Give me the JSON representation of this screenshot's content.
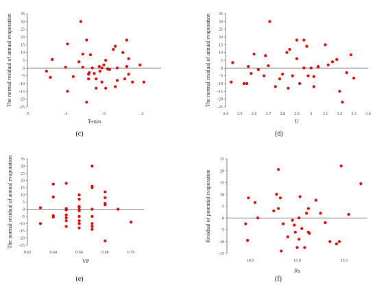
{
  "chart_data": [
    {
      "type": "scatter",
      "panel_label": "(c)",
      "xlabel": "T-min",
      "ylabel": "The normal residual of annual evaporation",
      "xlim": [
        -5,
        -1.5
      ],
      "ylim": [
        -25,
        35
      ],
      "xticks": [
        -5,
        -4,
        -3,
        -2
      ],
      "yticks": [
        -25,
        -20,
        -15,
        -10,
        -5,
        0,
        5,
        10,
        15,
        20,
        25,
        30,
        35
      ],
      "zero_line": true,
      "color": "#e00000",
      "points": [
        [
          -4.5,
          -2
        ],
        [
          -4.4,
          -6
        ],
        [
          -4.35,
          5.5
        ],
        [
          -4.0,
          0.5
        ],
        [
          -3.95,
          15.5
        ],
        [
          -3.95,
          -15
        ],
        [
          -3.8,
          -5.5
        ],
        [
          -3.65,
          4
        ],
        [
          -3.6,
          30
        ],
        [
          -3.55,
          9
        ],
        [
          -3.55,
          0.5
        ],
        [
          -3.45,
          18
        ],
        [
          -3.4,
          -4
        ],
        [
          -3.4,
          -7
        ],
        [
          -3.38,
          -3
        ],
        [
          -3.35,
          8.5
        ],
        [
          -3.3,
          0
        ],
        [
          -3.25,
          -3.5
        ],
        [
          -3.2,
          -7
        ],
        [
          -3.2,
          -13
        ],
        [
          -3.12,
          1
        ],
        [
          -3.1,
          -2
        ],
        [
          -3.05,
          -9
        ],
        [
          -3.05,
          0
        ],
        [
          -3.0,
          2
        ],
        [
          -2.95,
          5
        ],
        [
          -2.95,
          -13
        ],
        [
          -2.9,
          -0.5
        ],
        [
          -2.85,
          -1
        ],
        [
          -2.75,
          12
        ],
        [
          -2.7,
          14
        ],
        [
          -2.7,
          -12
        ],
        [
          -2.65,
          -8
        ],
        [
          -2.65,
          0
        ],
        [
          -2.5,
          10
        ],
        [
          -2.45,
          -7
        ],
        [
          -2.4,
          18
        ],
        [
          -2.4,
          1
        ],
        [
          -2.35,
          6
        ],
        [
          -2.35,
          -4
        ],
        [
          -2.25,
          -9
        ],
        [
          -2.05,
          2
        ],
        [
          -1.95,
          -9
        ],
        [
          -3.45,
          -22
        ]
      ]
    },
    {
      "type": "scatter",
      "panel_label": "(d)",
      "xlabel": "U",
      "ylabel": "The normal residual of annual evaporation",
      "xlim": [
        2.4,
        3.4
      ],
      "ylim": [
        -25,
        35
      ],
      "xticks": [
        2.4,
        2.5,
        2.6,
        2.7,
        2.8,
        2.9,
        3,
        3.1,
        3.2,
        3.3,
        3.4
      ],
      "yticks": [
        -25,
        -20,
        -15,
        -10,
        -5,
        0,
        5,
        10,
        15,
        20,
        25,
        30,
        35
      ],
      "zero_line": true,
      "color": "#e00000",
      "points": [
        [
          2.44,
          -9
        ],
        [
          2.45,
          3.5
        ],
        [
          2.53,
          -10
        ],
        [
          2.55,
          -10
        ],
        [
          2.56,
          1
        ],
        [
          2.58,
          -3.5
        ],
        [
          2.6,
          9
        ],
        [
          2.63,
          -1
        ],
        [
          2.67,
          -5
        ],
        [
          2.68,
          8
        ],
        [
          2.7,
          1.5
        ],
        [
          2.71,
          30
        ],
        [
          2.75,
          -12
        ],
        [
          2.78,
          -7
        ],
        [
          2.8,
          -4
        ],
        [
          2.83,
          10
        ],
        [
          2.84,
          -13
        ],
        [
          2.85,
          12
        ],
        [
          2.87,
          -5
        ],
        [
          2.9,
          18
        ],
        [
          2.9,
          6
        ],
        [
          2.92,
          -10
        ],
        [
          2.95,
          18
        ],
        [
          2.95,
          0
        ],
        [
          2.97,
          14
        ],
        [
          2.98,
          -5
        ],
        [
          3.0,
          0
        ],
        [
          3.02,
          -5.5
        ],
        [
          3.05,
          0.5
        ],
        [
          3.05,
          1
        ],
        [
          3.1,
          15
        ],
        [
          3.12,
          2
        ],
        [
          3.15,
          4
        ],
        [
          3.18,
          5.5
        ],
        [
          3.2,
          -15
        ],
        [
          3.22,
          -22
        ],
        [
          3.25,
          -3
        ],
        [
          3.28,
          8.5
        ],
        [
          3.3,
          -6.5
        ],
        [
          3.02,
          -12
        ]
      ]
    },
    {
      "type": "scatter",
      "panel_label": "(e)",
      "xlabel": "VP",
      "ylabel": "The normal residual of annual evaporation",
      "xlim": [
        0.62,
        0.71
      ],
      "ylim": [
        -25,
        35
      ],
      "xticks": [
        0.62,
        0.64,
        0.66,
        0.68,
        0.7
      ],
      "xtick_labels": [
        "0.62",
        "0.64",
        "0.66",
        "0.68",
        "0.70"
      ],
      "yticks": [
        -25,
        -20,
        -15,
        -10,
        -5,
        0,
        5,
        10,
        15,
        20,
        25,
        30,
        35
      ],
      "zero_line": true,
      "color": "#e00000",
      "points": [
        [
          0.63,
          1
        ],
        [
          0.63,
          -10
        ],
        [
          0.64,
          17.5
        ],
        [
          0.64,
          8.5
        ],
        [
          0.64,
          -5.5
        ],
        [
          0.64,
          -4.5
        ],
        [
          0.65,
          18
        ],
        [
          0.65,
          0.5
        ],
        [
          0.65,
          -0.5
        ],
        [
          0.65,
          -4
        ],
        [
          0.65,
          -6
        ],
        [
          0.65,
          -8
        ],
        [
          0.65,
          -12
        ],
        [
          0.66,
          10
        ],
        [
          0.66,
          7
        ],
        [
          0.66,
          2
        ],
        [
          0.66,
          1
        ],
        [
          0.66,
          -1
        ],
        [
          0.66,
          -5
        ],
        [
          0.66,
          -8
        ],
        [
          0.66,
          -10
        ],
        [
          0.66,
          -13
        ],
        [
          0.67,
          30
        ],
        [
          0.67,
          16
        ],
        [
          0.67,
          15
        ],
        [
          0.67,
          0
        ],
        [
          0.67,
          -5
        ],
        [
          0.67,
          -10
        ],
        [
          0.67,
          -12
        ],
        [
          0.67,
          -14
        ],
        [
          0.68,
          12
        ],
        [
          0.68,
          8
        ],
        [
          0.68,
          4
        ],
        [
          0.68,
          3
        ],
        [
          0.68,
          -22
        ],
        [
          0.69,
          0
        ],
        [
          0.7,
          -9
        ]
      ]
    },
    {
      "type": "scatter",
      "panel_label": "(f)",
      "xlabel": "Rs",
      "ylabel": "Residual of potential evaporation",
      "xlim": [
        14.25,
        15.75
      ],
      "ylim": [
        -15,
        25
      ],
      "xticks": [
        14.5,
        15.0,
        15.5
      ],
      "xtick_labels": [
        "14.5",
        "15.0",
        "15.5"
      ],
      "yticks": [
        -15,
        -10,
        -5,
        0,
        5,
        10,
        15,
        20,
        25
      ],
      "zero_line": true,
      "color": "#e00000",
      "points": [
        [
          14.45,
          -2.5
        ],
        [
          14.47,
          -9.5
        ],
        [
          14.48,
          8.5
        ],
        [
          14.55,
          6.5
        ],
        [
          14.58,
          0
        ],
        [
          14.75,
          3
        ],
        [
          14.78,
          10
        ],
        [
          14.8,
          20.5
        ],
        [
          14.8,
          4
        ],
        [
          14.82,
          8.5
        ],
        [
          14.83,
          -14
        ],
        [
          14.85,
          -2.5
        ],
        [
          14.95,
          -1
        ],
        [
          14.97,
          -3
        ],
        [
          14.98,
          -6
        ],
        [
          15.0,
          -12.5
        ],
        [
          15.02,
          -9
        ],
        [
          15.03,
          9
        ],
        [
          15.05,
          -4.5
        ],
        [
          15.08,
          -12.5
        ],
        [
          15.1,
          2
        ],
        [
          15.12,
          4
        ],
        [
          15.12,
          -6
        ],
        [
          15.13,
          -6.5
        ],
        [
          15.2,
          7.5
        ],
        [
          15.25,
          2
        ],
        [
          15.3,
          -2
        ],
        [
          15.35,
          -10
        ],
        [
          15.42,
          -11
        ],
        [
          15.45,
          -10
        ],
        [
          15.47,
          22
        ],
        [
          15.55,
          1.5
        ],
        [
          15.68,
          14.5
        ],
        [
          15.02,
          0
        ],
        [
          14.9,
          -8
        ]
      ]
    }
  ]
}
